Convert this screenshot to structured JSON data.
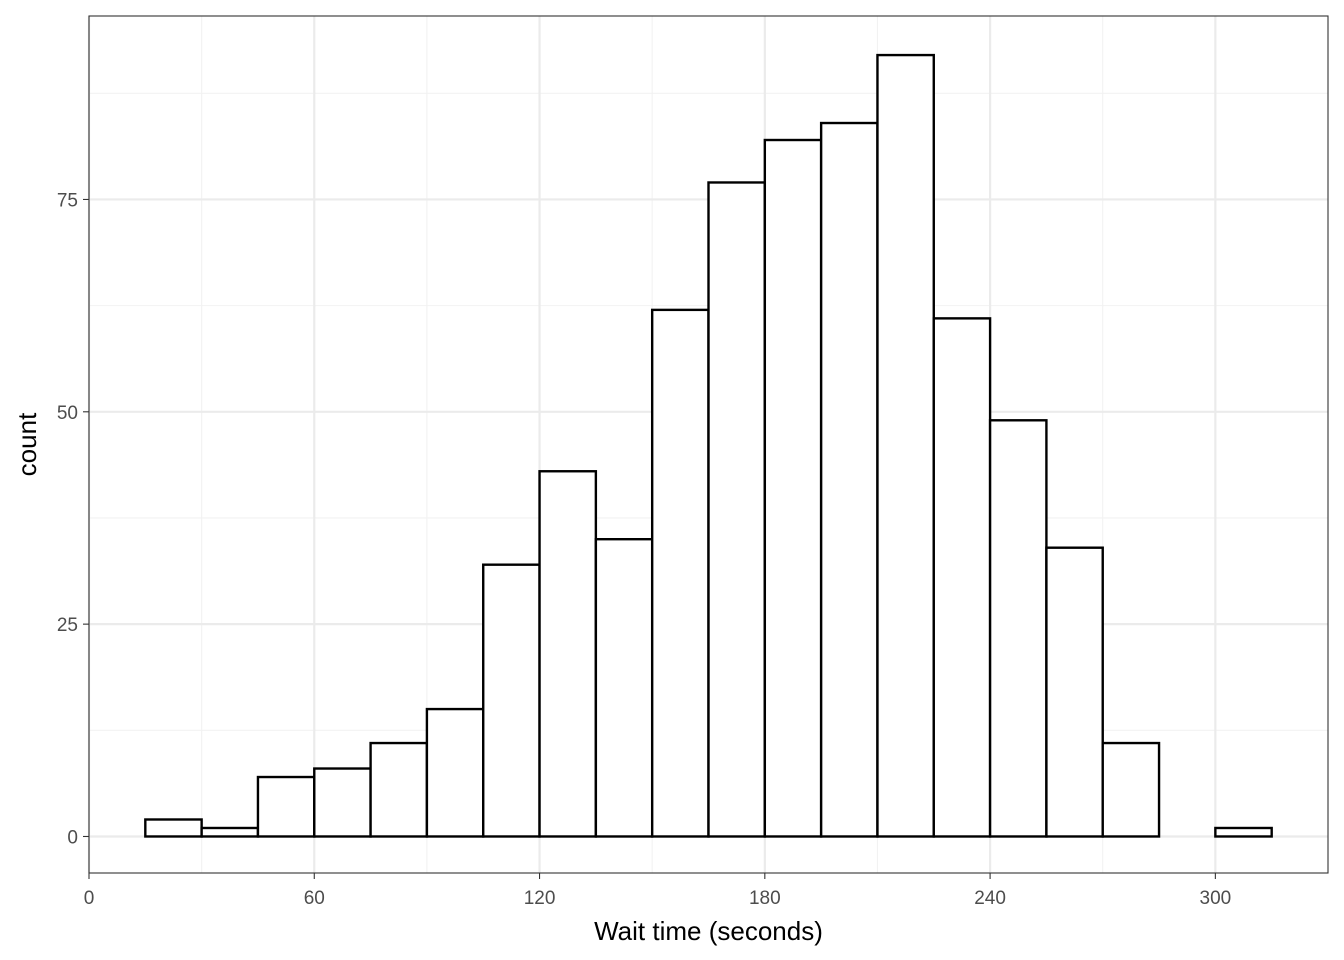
{
  "chart_data": {
    "type": "bar",
    "subtype": "histogram",
    "title": "",
    "xlabel": "Wait time (seconds)",
    "ylabel": "count",
    "xlim": [
      0,
      330
    ],
    "ylim": [
      -4.3,
      96.6
    ],
    "binwidth": 15,
    "bins": [
      {
        "x0": 15,
        "x1": 30,
        "count": 2
      },
      {
        "x0": 30,
        "x1": 45,
        "count": 1
      },
      {
        "x0": 45,
        "x1": 60,
        "count": 7
      },
      {
        "x0": 60,
        "x1": 75,
        "count": 8
      },
      {
        "x0": 75,
        "x1": 90,
        "count": 11
      },
      {
        "x0": 90,
        "x1": 105,
        "count": 15
      },
      {
        "x0": 105,
        "x1": 120,
        "count": 32
      },
      {
        "x0": 120,
        "x1": 135,
        "count": 43
      },
      {
        "x0": 135,
        "x1": 150,
        "count": 35
      },
      {
        "x0": 150,
        "x1": 165,
        "count": 62
      },
      {
        "x0": 165,
        "x1": 180,
        "count": 77
      },
      {
        "x0": 180,
        "x1": 195,
        "count": 82
      },
      {
        "x0": 195,
        "x1": 210,
        "count": 84
      },
      {
        "x0": 210,
        "x1": 225,
        "count": 92
      },
      {
        "x0": 225,
        "x1": 240,
        "count": 61
      },
      {
        "x0": 240,
        "x1": 255,
        "count": 49
      },
      {
        "x0": 255,
        "x1": 270,
        "count": 34
      },
      {
        "x0": 270,
        "x1": 285,
        "count": 11
      },
      {
        "x0": 285,
        "x1": 300,
        "count": 0
      },
      {
        "x0": 300,
        "x1": 315,
        "count": 1
      }
    ],
    "x_ticks": [
      0,
      60,
      120,
      180,
      240,
      300
    ],
    "x_tick_labels": [
      "0",
      "60",
      "120",
      "180",
      "240",
      "300"
    ],
    "x_minor_ticks": [
      30,
      90,
      150,
      210,
      270
    ],
    "y_ticks": [
      0,
      25,
      50,
      75
    ],
    "y_tick_labels": [
      "0",
      "25",
      "50",
      "75"
    ],
    "y_minor_ticks": [
      12.5,
      37.5,
      62.5,
      87.5
    ],
    "grid": true,
    "legend": "none",
    "colors": {
      "bar_fill": "#ffffff",
      "bar_outline": "#000000",
      "grid_major": "#ebebeb",
      "grid_minor": "#f2f2f2",
      "panel_border": "#333333",
      "tick_label": "#4d4d4d"
    }
  }
}
